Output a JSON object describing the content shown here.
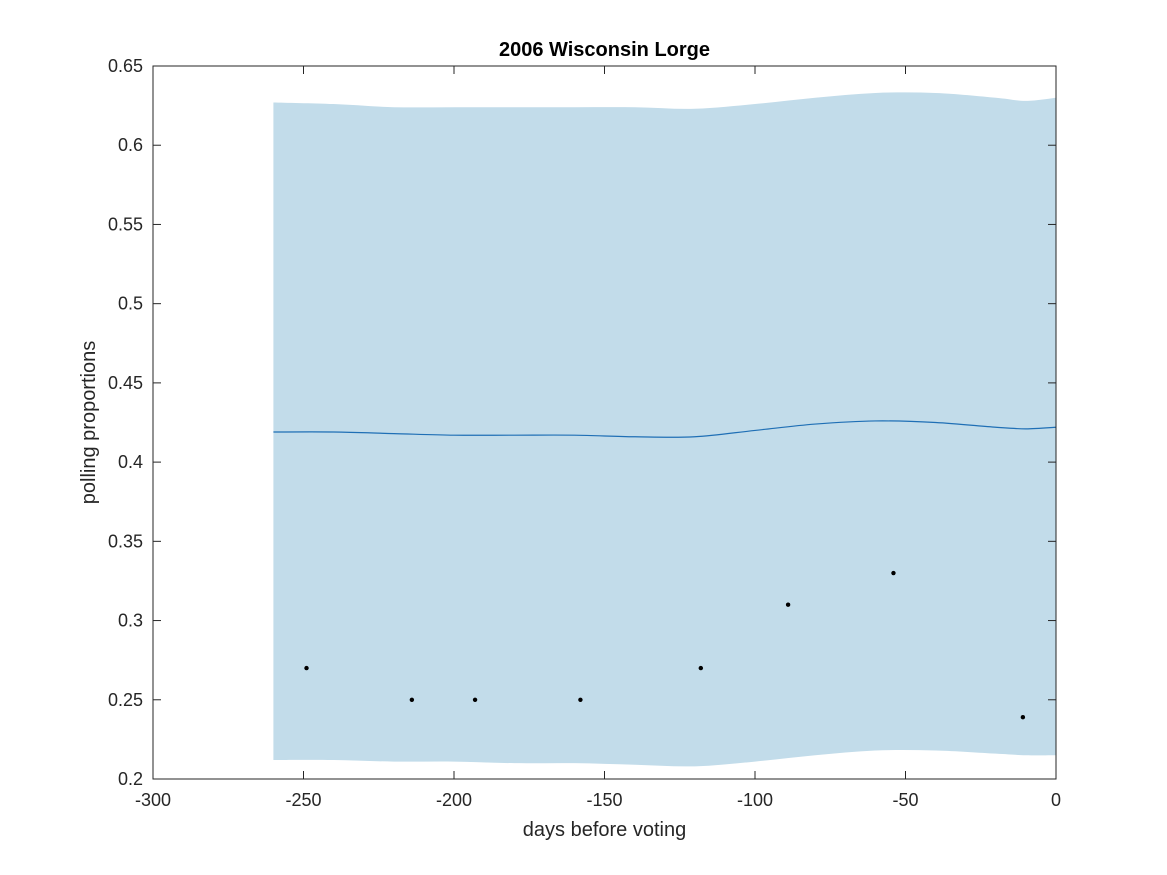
{
  "chart_data": {
    "type": "line",
    "title": "2006 Wisconsin Lorge",
    "xlabel": "days before voting",
    "ylabel": "polling proportions",
    "xlim": [
      -300,
      0
    ],
    "ylim": [
      0.2,
      0.65
    ],
    "xticks": [
      -300,
      -250,
      -200,
      -150,
      -100,
      -50,
      0
    ],
    "yticks": [
      0.2,
      0.25,
      0.3,
      0.35,
      0.4,
      0.45,
      0.5,
      0.55,
      0.6,
      0.65
    ],
    "grid": false,
    "colors": {
      "band": "#c2dcea",
      "line": "#1f6fb5",
      "points": "#000000",
      "axes": "#262626"
    },
    "band_x": [
      -260,
      -240,
      -220,
      -200,
      -180,
      -160,
      -140,
      -120,
      -100,
      -80,
      -60,
      -40,
      -20,
      -10,
      0
    ],
    "band_upper": [
      0.627,
      0.626,
      0.624,
      0.624,
      0.624,
      0.624,
      0.624,
      0.623,
      0.626,
      0.63,
      0.633,
      0.633,
      0.63,
      0.628,
      0.63
    ],
    "band_lower": [
      0.212,
      0.212,
      0.211,
      0.211,
      0.21,
      0.21,
      0.209,
      0.208,
      0.211,
      0.215,
      0.218,
      0.218,
      0.216,
      0.215,
      0.215
    ],
    "mean_x": [
      -260,
      -240,
      -220,
      -200,
      -180,
      -160,
      -140,
      -120,
      -100,
      -80,
      -60,
      -40,
      -20,
      -10,
      0
    ],
    "mean_y": [
      0.419,
      0.419,
      0.418,
      0.417,
      0.417,
      0.417,
      0.416,
      0.416,
      0.42,
      0.424,
      0.426,
      0.425,
      0.422,
      0.421,
      0.422
    ],
    "points": [
      {
        "x": -249,
        "y": 0.27
      },
      {
        "x": -214,
        "y": 0.25
      },
      {
        "x": -193,
        "y": 0.25
      },
      {
        "x": -158,
        "y": 0.25
      },
      {
        "x": -118,
        "y": 0.27
      },
      {
        "x": -89,
        "y": 0.31
      },
      {
        "x": -54,
        "y": 0.33
      },
      {
        "x": -11,
        "y": 0.239
      }
    ]
  }
}
